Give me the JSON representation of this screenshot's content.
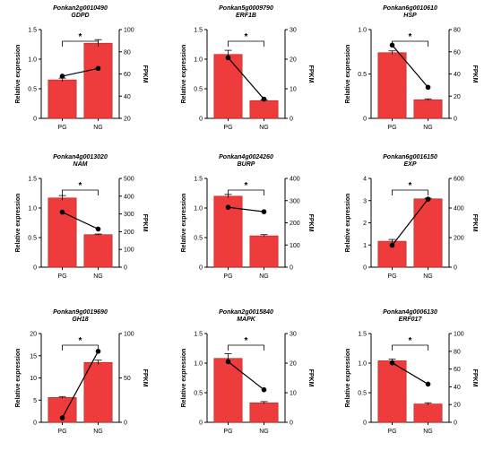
{
  "chart_data": [
    {
      "type": "bar",
      "title": "Ponkan2g0010490",
      "subtitle": "GDPD",
      "categories": [
        "PG",
        "NG"
      ],
      "values": [
        0.65,
        1.27
      ],
      "errors": [
        0.03,
        0.06
      ],
      "fpkm": [
        58,
        65
      ],
      "ylabel": "Relative expression",
      "y2label": "FPKM",
      "ylim": [
        0,
        1.5
      ],
      "yticks": [
        0,
        0.5,
        1.0,
        1.5
      ],
      "y2lim": [
        20,
        100
      ],
      "y2ticks": [
        20,
        40,
        60,
        80,
        100
      ],
      "significance": "*"
    },
    {
      "type": "bar",
      "title": "Ponkan5g0009790",
      "subtitle": "ERF1B",
      "categories": [
        "PG",
        "NG"
      ],
      "values": [
        1.08,
        0.3
      ],
      "errors": [
        0.07,
        0.01
      ],
      "fpkm": [
        20.5,
        6.5
      ],
      "ylabel": "Relative expression",
      "y2label": "FPKM",
      "ylim": [
        0,
        1.5
      ],
      "yticks": [
        0,
        0.5,
        1.0,
        1.5
      ],
      "y2lim": [
        0,
        30
      ],
      "y2ticks": [
        0,
        10,
        20,
        30
      ],
      "significance": "*"
    },
    {
      "type": "bar",
      "title": "Ponkan6g0010610",
      "subtitle": "HSP",
      "categories": [
        "PG",
        "NG"
      ],
      "values": [
        0.74,
        0.21
      ],
      "errors": [
        0.02,
        0.01
      ],
      "fpkm": [
        66,
        28
      ],
      "ylabel": "Relative expression",
      "y2label": "FPKM",
      "ylim": [
        0,
        1.0
      ],
      "yticks": [
        0,
        0.5,
        1.0
      ],
      "y2lim": [
        0,
        80
      ],
      "y2ticks": [
        0,
        20,
        40,
        60,
        80
      ],
      "significance": "*"
    },
    {
      "type": "bar",
      "title": "Ponkan4g0013020",
      "subtitle": "NAM",
      "categories": [
        "PG",
        "NG"
      ],
      "values": [
        1.17,
        0.55
      ],
      "errors": [
        0.04,
        0.01
      ],
      "fpkm": [
        310,
        215
      ],
      "ylabel": "Relative expression",
      "y2label": "FPKM",
      "ylim": [
        0,
        1.5
      ],
      "yticks": [
        0,
        0.5,
        1.0,
        1.5
      ],
      "y2lim": [
        0,
        500
      ],
      "y2ticks": [
        0,
        100,
        200,
        300,
        400,
        500
      ],
      "significance": "*"
    },
    {
      "type": "bar",
      "title": "Ponkan4g0024260",
      "subtitle": "BURP",
      "categories": [
        "PG",
        "NG"
      ],
      "values": [
        1.2,
        0.53
      ],
      "errors": [
        0.03,
        0.02
      ],
      "fpkm": [
        270,
        250
      ],
      "ylabel": "Relative expression",
      "y2label": "FPKM",
      "ylim": [
        0,
        1.5
      ],
      "yticks": [
        0,
        0.5,
        1.0,
        1.5
      ],
      "y2lim": [
        0,
        400
      ],
      "y2ticks": [
        0,
        100,
        200,
        300,
        400
      ],
      "significance": "*"
    },
    {
      "type": "bar",
      "title": "Ponkan6g0016150",
      "subtitle": "EXP",
      "categories": [
        "PG",
        "NG"
      ],
      "values": [
        1.17,
        3.08
      ],
      "errors": [
        0.08,
        0.03
      ],
      "fpkm": [
        148,
        460
      ],
      "ylabel": "Relative expression",
      "y2label": "FPKM",
      "ylim": [
        0,
        4
      ],
      "yticks": [
        0,
        1,
        2,
        3,
        4
      ],
      "y2lim": [
        0,
        600
      ],
      "y2ticks": [
        0,
        200,
        400,
        600
      ],
      "significance": "*"
    },
    {
      "type": "bar",
      "title": "Ponkan9g0019690",
      "subtitle": "GH18",
      "categories": [
        "PG",
        "NG"
      ],
      "values": [
        5.6,
        13.5
      ],
      "errors": [
        0.2,
        0.5
      ],
      "fpkm": [
        5,
        80
      ],
      "ylabel": "Relative expression",
      "y2label": "FPKM",
      "ylim": [
        0,
        20
      ],
      "yticks": [
        0,
        5,
        10,
        15,
        20
      ],
      "y2lim": [
        0,
        100
      ],
      "y2ticks": [
        0,
        50,
        100
      ],
      "significance": "*"
    },
    {
      "type": "bar",
      "title": "Ponkan2g0015840",
      "subtitle": "MAPK",
      "categories": [
        "PG",
        "NG"
      ],
      "values": [
        1.08,
        0.33
      ],
      "errors": [
        0.08,
        0.02
      ],
      "fpkm": [
        20.5,
        11
      ],
      "ylabel": "Relative expression",
      "y2label": "FPKM",
      "ylim": [
        0,
        1.5
      ],
      "yticks": [
        0,
        0.5,
        1.0,
        1.5
      ],
      "y2lim": [
        0,
        30
      ],
      "y2ticks": [
        0,
        10,
        20,
        30
      ],
      "significance": "*"
    },
    {
      "type": "bar",
      "title": "Ponkan4g0006130",
      "subtitle": "ERF017",
      "categories": [
        "PG",
        "NG"
      ],
      "values": [
        1.04,
        0.31
      ],
      "errors": [
        0.03,
        0.02
      ],
      "fpkm": [
        67,
        43
      ],
      "ylabel": "Relative expression",
      "y2label": "FPKM",
      "ylim": [
        0,
        1.5
      ],
      "yticks": [
        0,
        0.5,
        1.0,
        1.5
      ],
      "y2lim": [
        0,
        100
      ],
      "y2ticks": [
        0,
        20,
        40,
        60,
        80,
        100
      ],
      "significance": "*"
    }
  ],
  "colors": {
    "bar": "#ee3b3b",
    "bar_edge": "#b22222",
    "line": "#000000"
  }
}
